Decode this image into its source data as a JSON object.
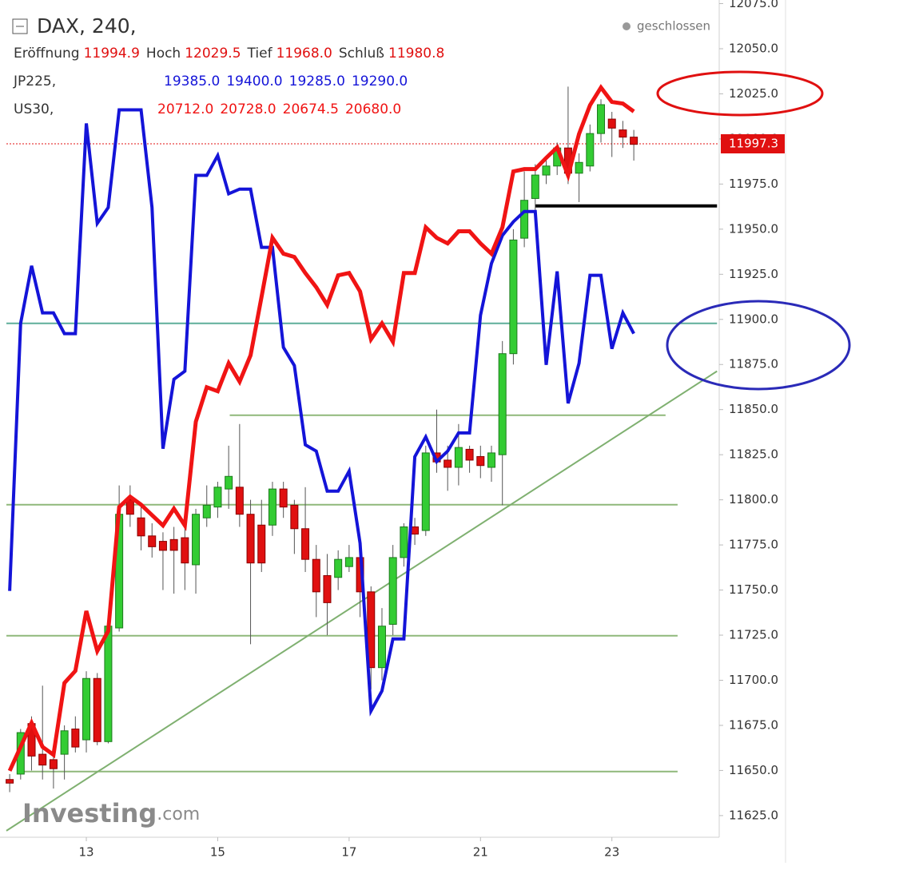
{
  "chart_data": {
    "type": "candlestick",
    "x": [
      0,
      1,
      2,
      3,
      4,
      5,
      6,
      7,
      8,
      9,
      10,
      11,
      12,
      13,
      14,
      15,
      16,
      17,
      18,
      19,
      20,
      21,
      22,
      23,
      24,
      25,
      26,
      27,
      28,
      29,
      30,
      31,
      32,
      33,
      34,
      35,
      36,
      37,
      38,
      39,
      40,
      41,
      42,
      43,
      44,
      45,
      46,
      47,
      48,
      49,
      50,
      51,
      52,
      53,
      54,
      55,
      56,
      57
    ],
    "xlim": [
      -0.3,
      64.8
    ],
    "xticks": [
      {
        "value": 7,
        "label": "13"
      },
      {
        "value": 19,
        "label": "15"
      },
      {
        "value": 31,
        "label": "17"
      },
      {
        "value": 43,
        "label": "21"
      },
      {
        "value": 55,
        "label": "23"
      }
    ],
    "ylim": [
      11613,
      12077
    ],
    "yticks": [
      {
        "value": 11625,
        "label": "11625.0"
      },
      {
        "value": 11650,
        "label": "11650.0"
      },
      {
        "value": 11675,
        "label": "11675.0"
      },
      {
        "value": 11700,
        "label": "11700.0"
      },
      {
        "value": 11725,
        "label": "11725.0"
      },
      {
        "value": 11750,
        "label": "11750.0"
      },
      {
        "value": 11775,
        "label": "11775.0"
      },
      {
        "value": 11800,
        "label": "11800.0"
      },
      {
        "value": 11825,
        "label": "11825.0"
      },
      {
        "value": 11850,
        "label": "11850.0"
      },
      {
        "value": 11875,
        "label": "11875.0"
      },
      {
        "value": 11900,
        "label": "11900.0"
      },
      {
        "value": 11925,
        "label": "11925.0"
      },
      {
        "value": 11950,
        "label": "11950.0"
      },
      {
        "value": 11975,
        "label": "11975.0"
      },
      {
        "value": 12000,
        "label": "12000.0"
      },
      {
        "value": 12025,
        "label": "12025.0"
      },
      {
        "value": 12050,
        "label": "12050.0"
      },
      {
        "value": 12075,
        "label": "12075.0"
      }
    ],
    "candles": {
      "name": "DAX, 240,",
      "up_color": "#33cc33",
      "down_color": "#e01010",
      "quote": [
        {
          "label": "Eröffnung",
          "value": "11994.9"
        },
        {
          "label": "Hoch",
          "value": "12029.5"
        },
        {
          "label": "Tief",
          "value": "11968.0"
        },
        {
          "label": "Schluß",
          "value": "11980.8"
        }
      ],
      "open": [
        11645,
        11648,
        11676,
        11659,
        11656,
        11659,
        11673,
        11667,
        11701,
        11666,
        11729,
        11800,
        11790,
        11780,
        11777,
        11778,
        11779,
        11764,
        11790,
        11796,
        11806,
        11807,
        11792,
        11786,
        11786,
        11806,
        11797,
        11784,
        11767,
        11758,
        11757,
        11763,
        11768,
        11749,
        11707,
        11731,
        11768,
        11785,
        11783,
        11826,
        11822,
        11818,
        11828,
        11824,
        11818,
        11825,
        11881,
        11945,
        11967,
        11980,
        11985,
        11995,
        11981,
        11985,
        12003,
        12011,
        12005,
        12001
      ],
      "high": [
        11648,
        11673,
        11680,
        11697,
        11660,
        11675,
        11680,
        11705,
        11704,
        11735,
        11808,
        11808,
        11797,
        11787,
        11782,
        11785,
        11790,
        11795,
        11808,
        11810,
        11830,
        11842,
        11800,
        11800,
        11810,
        11810,
        11800,
        11807,
        11775,
        11770,
        11772,
        11775,
        11780,
        11752,
        11740,
        11775,
        11787,
        11790,
        11830,
        11850,
        11830,
        11842,
        11830,
        11830,
        11830,
        11888,
        11950,
        11982,
        11986,
        11990,
        11998,
        12029,
        11992,
        12008,
        12022,
        12015,
        12010,
        12005
      ],
      "low": [
        11638,
        11645,
        11650,
        11645,
        11640,
        11645,
        11660,
        11660,
        11664,
        11665,
        11727,
        11785,
        11772,
        11768,
        11750,
        11748,
        11750,
        11748,
        11785,
        11790,
        11795,
        11785,
        11720,
        11760,
        11780,
        11790,
        11770,
        11760,
        11735,
        11725,
        11750,
        11760,
        11735,
        11695,
        11700,
        11725,
        11763,
        11775,
        11780,
        11815,
        11805,
        11808,
        11815,
        11812,
        11810,
        11797,
        11875,
        11940,
        11960,
        11975,
        11980,
        11975,
        11965,
        11982,
        11998,
        11990,
        11995,
        11988
      ],
      "close": [
        11643,
        11671,
        11658,
        11653,
        11651,
        11672,
        11663,
        11701,
        11666,
        11730,
        11792,
        11792,
        11780,
        11774,
        11772,
        11772,
        11765,
        11792,
        11797,
        11807,
        11813,
        11792,
        11765,
        11765,
        11806,
        11796,
        11784,
        11767,
        11749,
        11743,
        11767,
        11768,
        11749,
        11707,
        11730,
        11768,
        11785,
        11781,
        11826,
        11821,
        11818,
        11829,
        11822,
        11819,
        11826,
        11881,
        11944,
        11966,
        11980,
        11985,
        11995,
        11981,
        11987,
        12003,
        12019,
        12006,
        12001,
        11997
      ]
    },
    "series": [
      {
        "name": "JP225,",
        "color": "#1414d8",
        "quote": [
          "19385.0",
          "19400.0",
          "19285.0",
          "19290.0"
        ],
        "values": [
          11749.5,
          11897.8,
          11929.7,
          11903.6,
          11903.6,
          11892.1,
          11892.1,
          12008.6,
          11953.2,
          11962.0,
          12016.1,
          12016.1,
          12016.1,
          11962.0,
          11828.3,
          11866.8,
          11871.3,
          11979.8,
          11979.8,
          11990.8,
          11969.6,
          11972.2,
          11972.2,
          11939.9,
          11939.9,
          11884.5,
          11874.4,
          11830.5,
          11827.0,
          11804.8,
          11804.8,
          11815.9,
          11776.0,
          11683.0,
          11694.1,
          11722.9,
          11722.9,
          11823.9,
          11834.9,
          11821.2,
          11827.0,
          11837.1,
          11837.1,
          11902.3,
          11931.0,
          11946.5,
          11954.1,
          11959.8,
          11959.8,
          11874.8,
          11926.6,
          11853.5,
          11875.7,
          11924.4,
          11924.4,
          11883.7,
          11903.6,
          11892.1
        ]
      },
      {
        "name": "US30,",
        "color": "#f01414",
        "quote": [
          "20712.0",
          "20728.0",
          "20674.5",
          "20680.0"
        ],
        "values": [
          11649.8,
          11663.1,
          11676.4,
          11663.1,
          11658.7,
          11698.5,
          11705.2,
          11738.4,
          11716.2,
          11727.3,
          11796.0,
          11801.7,
          11797.3,
          11791.5,
          11785.8,
          11795.1,
          11785.8,
          11843.3,
          11862.4,
          11860.2,
          11875.7,
          11865.5,
          11880.1,
          11912.4,
          11945.2,
          11936.4,
          11934.6,
          11925.7,
          11917.8,
          11908.0,
          11924.4,
          11925.7,
          11915.5,
          11889.0,
          11897.8,
          11887.6,
          11925.7,
          11925.7,
          11951.0,
          11945.2,
          11942.1,
          11948.8,
          11948.8,
          11942.1,
          11936.4,
          11951.0,
          11982.0,
          11983.3,
          11983.3,
          11989.5,
          11995.3,
          11979.8,
          12002.8,
          12018.7,
          12028.5,
          12020.5,
          12019.6,
          12015.2
        ]
      }
    ],
    "last": {
      "value": 11997.3,
      "label": "11997.3",
      "color": "#e01010"
    },
    "levels": [
      {
        "value": 11846.9,
        "from": 20.1,
        "to": 59.9,
        "color": "#8fb87a"
      },
      {
        "value": 11797.3,
        "from": -0.3,
        "to": 61,
        "color": "#8fb87a"
      },
      {
        "value": 11724.7,
        "from": -0.3,
        "to": 61,
        "color": "#8fb87a"
      },
      {
        "value": 11649.4,
        "from": 1.3,
        "to": 61,
        "color": "#8fb87a"
      },
      {
        "value": 11962.9,
        "from": 48,
        "to": 64.6,
        "color": "#000000"
      },
      {
        "value": 11897.8,
        "from": -0.3,
        "to": 64.6,
        "color": "#5fae9a"
      }
    ],
    "trendline": {
      "x": [
        -0.3,
        64.6
      ],
      "y": [
        11616.6,
        11871.3
      ],
      "color": "#7fb070"
    },
    "status": "geschlossen",
    "watermark": [
      "Investing",
      ".com"
    ]
  }
}
